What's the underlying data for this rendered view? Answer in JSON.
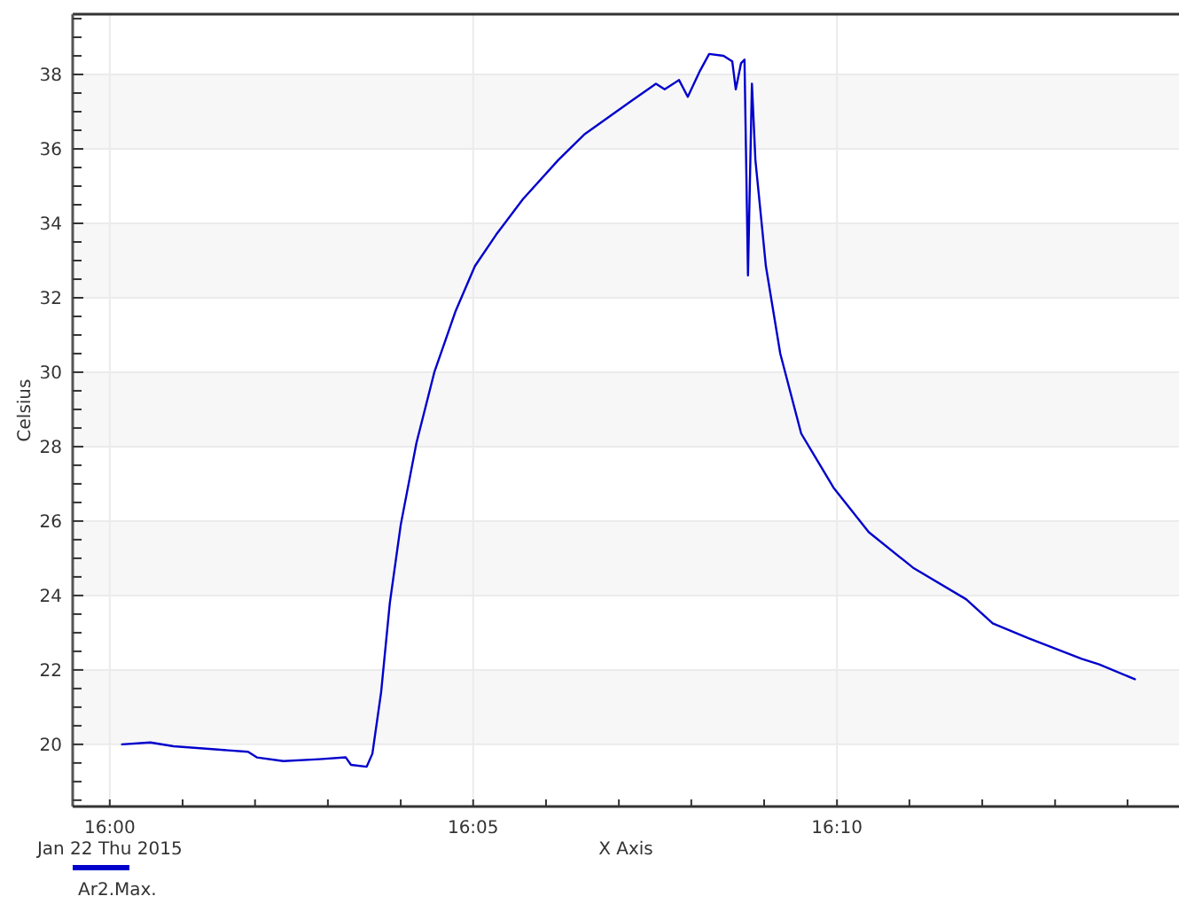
{
  "chart_data": {
    "type": "line",
    "xlabel": "X Axis",
    "ylabel": "Celsius",
    "annotations": [
      "Jan 22 Thu 2015"
    ],
    "xlim": [
      15.9915,
      16.2451
    ],
    "ylim": [
      18.33,
      39.62
    ],
    "xticks": [
      {
        "value": 16,
        "label": "16:00"
      },
      {
        "value": 16.0167,
        "label": null
      },
      {
        "value": 16.0333,
        "label": null
      },
      {
        "value": 16.05,
        "label": null
      },
      {
        "value": 16.0667,
        "label": null
      },
      {
        "value": 16.0833,
        "label": "16:05"
      },
      {
        "value": 16.1,
        "label": null
      },
      {
        "value": 16.1167,
        "label": null
      },
      {
        "value": 16.1333,
        "label": null
      },
      {
        "value": 16.15,
        "label": null
      },
      {
        "value": 16.1667,
        "label": "16:10"
      },
      {
        "value": 16.1833,
        "label": null
      },
      {
        "value": 16.2,
        "label": null
      },
      {
        "value": 16.2167,
        "label": null
      },
      {
        "value": 16.2333,
        "label": null
      }
    ],
    "yticks": [
      {
        "value": 18.5,
        "label": null
      },
      {
        "value": 19,
        "label": null
      },
      {
        "value": 19.5,
        "label": null
      },
      20,
      {
        "value": 20.5,
        "label": null
      },
      {
        "value": 21,
        "label": null
      },
      {
        "value": 21.5,
        "label": null
      },
      22,
      {
        "value": 22.5,
        "label": null
      },
      {
        "value": 23,
        "label": null
      },
      {
        "value": 23.5,
        "label": null
      },
      24,
      {
        "value": 24.5,
        "label": null
      },
      {
        "value": 25,
        "label": null
      },
      {
        "value": 25.5,
        "label": null
      },
      26,
      {
        "value": 26.5,
        "label": null
      },
      {
        "value": 27,
        "label": null
      },
      {
        "value": 27.5,
        "label": null
      },
      28,
      {
        "value": 28.5,
        "label": null
      },
      {
        "value": 29,
        "label": null
      },
      {
        "value": 29.5,
        "label": null
      },
      30,
      {
        "value": 30.5,
        "label": null
      },
      {
        "value": 31,
        "label": null
      },
      {
        "value": 31.5,
        "label": null
      },
      32,
      {
        "value": 32.5,
        "label": null
      },
      {
        "value": 33,
        "label": null
      },
      {
        "value": 33.5,
        "label": null
      },
      34,
      {
        "value": 34.5,
        "label": null
      },
      {
        "value": 35,
        "label": null
      },
      {
        "value": 35.5,
        "label": null
      },
      36,
      {
        "value": 36.5,
        "label": null
      },
      {
        "value": 37,
        "label": null
      },
      {
        "value": 37.5,
        "label": null
      },
      38,
      {
        "value": 38.5,
        "label": null
      },
      {
        "value": 39,
        "label": null
      },
      {
        "value": 39.5,
        "label": null
      }
    ],
    "grid": true,
    "legend": "bottom left",
    "bands": [
      {
        "axis": "y",
        "from": 20,
        "to": 22,
        "color": "#f7f7f7"
      },
      {
        "axis": "y",
        "from": 24,
        "to": 26,
        "color": "#f7f7f7"
      },
      {
        "axis": "y",
        "from": 28,
        "to": 30,
        "color": "#f7f7f7"
      },
      {
        "axis": "y",
        "from": 32,
        "to": 34,
        "color": "#f7f7f7"
      },
      {
        "axis": "y",
        "from": 36,
        "to": 38,
        "color": "#f7f7f7"
      }
    ],
    "series": [
      {
        "name": "Ar2.Max.",
        "color": "#0000cc",
        "x": [
          16.0028,
          16.0093,
          16.0146,
          16.0317,
          16.0337,
          16.0398,
          16.048,
          16.0541,
          16.0553,
          16.0589,
          16.0602,
          16.0622,
          16.0642,
          16.0667,
          16.0703,
          16.0744,
          16.0793,
          16.0837,
          16.0886,
          16.0947,
          16.1028,
          16.1089,
          16.1191,
          16.1252,
          16.1272,
          16.1305,
          16.1325,
          16.1353,
          16.1374,
          16.1407,
          16.1427,
          16.1435,
          16.1447,
          16.1455,
          16.1463,
          16.1472,
          16.148,
          16.1504,
          16.1537,
          16.1585,
          16.1659,
          16.174,
          16.1841,
          16.1963,
          16.2024,
          16.2106,
          16.2228,
          16.2268,
          16.235
        ],
        "values": [
          20.0,
          20.05,
          19.95,
          19.8,
          19.65,
          19.55,
          19.6,
          19.65,
          19.45,
          19.4,
          19.75,
          21.4,
          23.8,
          25.9,
          28.1,
          30.0,
          31.65,
          32.85,
          33.7,
          34.65,
          35.7,
          36.4,
          37.25,
          37.75,
          37.6,
          37.85,
          37.4,
          38.1,
          38.55,
          38.5,
          38.35,
          37.6,
          38.3,
          38.4,
          32.6,
          37.75,
          35.7,
          32.85,
          30.5,
          28.35,
          26.9,
          25.7,
          24.75,
          23.9,
          23.25,
          22.85,
          22.3,
          22.15,
          21.75
        ]
      }
    ]
  }
}
